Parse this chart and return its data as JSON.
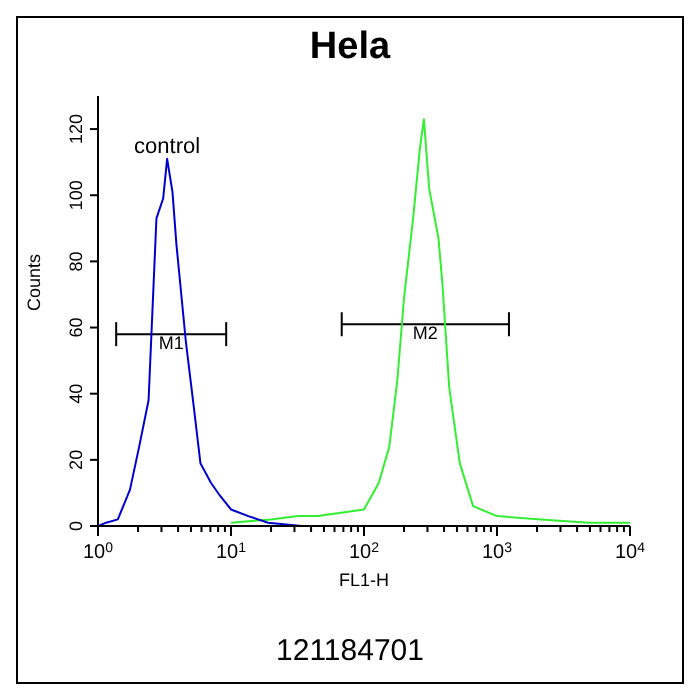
{
  "chart_data": {
    "type": "line",
    "title": "Hela",
    "xlabel": "FL1-H",
    "ylabel": "Counts",
    "log": "x",
    "xlim": [
      1,
      10000
    ],
    "ylim": [
      0,
      130
    ],
    "xticks": [
      {
        "value": 1,
        "label": "10$^{0}$"
      },
      {
        "value": 2,
        "label": null
      },
      {
        "value": 3,
        "label": null
      },
      {
        "value": 4,
        "label": null
      },
      {
        "value": 5,
        "label": null
      },
      {
        "value": 6,
        "label": null
      },
      {
        "value": 7,
        "label": null
      },
      {
        "value": 8,
        "label": null
      },
      {
        "value": 9,
        "label": null
      },
      {
        "value": 10,
        "label": "10$^{1}$"
      },
      {
        "value": 20,
        "label": null
      },
      {
        "value": 30,
        "label": null
      },
      {
        "value": 40,
        "label": null
      },
      {
        "value": 50,
        "label": null
      },
      {
        "value": 60,
        "label": null
      },
      {
        "value": 70,
        "label": null
      },
      {
        "value": 80,
        "label": null
      },
      {
        "value": 90,
        "label": null
      },
      {
        "value": 100,
        "label": "10$^{2}$"
      },
      {
        "value": 200,
        "label": null
      },
      {
        "value": 300,
        "label": null
      },
      {
        "value": 400,
        "label": null
      },
      {
        "value": 500,
        "label": null
      },
      {
        "value": 600,
        "label": null
      },
      {
        "value": 700,
        "label": null
      },
      {
        "value": 800,
        "label": null
      },
      {
        "value": 900,
        "label": null
      },
      {
        "value": 1000,
        "label": "10$^{3}$"
      },
      {
        "value": 2000,
        "label": null
      },
      {
        "value": 3000,
        "label": null
      },
      {
        "value": 4000,
        "label": null
      },
      {
        "value": 5000,
        "label": null
      },
      {
        "value": 6000,
        "label": null
      },
      {
        "value": 7000,
        "label": null
      },
      {
        "value": 8000,
        "label": null
      },
      {
        "value": 9000,
        "label": null
      },
      {
        "value": 10000,
        "label": "10$^{4}$"
      }
    ],
    "yticks": [
      0,
      20,
      40,
      60,
      80,
      100,
      120
    ],
    "series": [
      {
        "name": "control",
        "color": "#0000cc",
        "x": [
          1,
          1.15,
          1.41,
          1.74,
          2.04,
          2.4,
          2.75,
          3.09,
          3.31,
          3.63,
          3.89,
          4.57,
          5.25,
          5.89,
          7.08,
          8.32,
          10,
          13.5,
          19,
          34,
          100
        ],
        "values": [
          0,
          1,
          2,
          11,
          24,
          38,
          93,
          99,
          111,
          101,
          85,
          56,
          36,
          19,
          13,
          9,
          5,
          3,
          1,
          0,
          0
        ]
      },
      {
        "color": "#33ee33",
        "x": [
          10,
          20,
          32,
          45,
          100,
          129,
          155,
          178,
          200,
          234,
          263,
          282,
          309,
          363,
          389,
          437,
          525,
          661,
          1000,
          2140,
          4900,
          10000
        ],
        "values": [
          1,
          2,
          3,
          3,
          5,
          13,
          24,
          44,
          69,
          93,
          114,
          123,
          102,
          87,
          73,
          42,
          19,
          6,
          3,
          2,
          1,
          1
        ]
      },
      {
        "name": "M1",
        "color": "#000000",
        "x": [
          1.37,
          9.2
        ],
        "values": [
          58,
          58
        ]
      },
      {
        "name": "M2",
        "color": "#000000",
        "x": [
          68,
          1230
        ],
        "values": [
          61,
          61
        ]
      }
    ],
    "annotations": [
      "121184701"
    ]
  }
}
